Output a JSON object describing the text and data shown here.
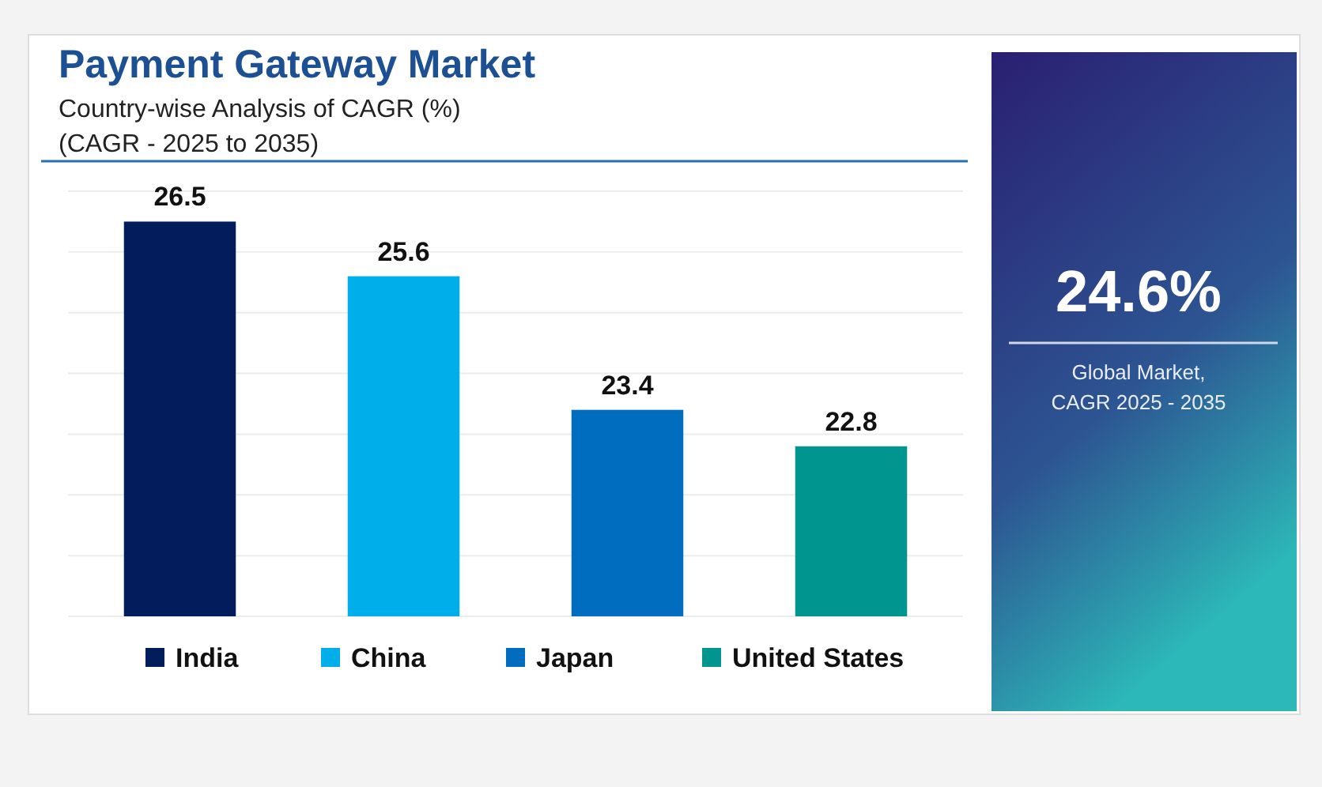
{
  "chart_data": {
    "type": "bar",
    "title": "Payment Gateway Market",
    "subtitle": "Country-wise Analysis of CAGR (%)\n(CAGR - 2025 to 2035)",
    "categories": [
      "India",
      "China",
      "Japan",
      "United States"
    ],
    "values": [
      26.5,
      25.6,
      23.4,
      22.8
    ],
    "colors": [
      "#031d5c",
      "#00aeea",
      "#006dbf",
      "#00968f"
    ],
    "ylim": [
      20,
      27
    ],
    "yticks": [
      {
        "value": 20,
        "label": null
      },
      {
        "value": 21,
        "label": null
      },
      {
        "value": 22,
        "label": null
      },
      {
        "value": 23,
        "label": null
      },
      {
        "value": 24,
        "label": null
      },
      {
        "value": 25,
        "label": null
      },
      {
        "value": 26,
        "label": null
      },
      {
        "value": 27,
        "label": null
      }
    ],
    "grid": "y",
    "tick_labels": false,
    "data_labels": true,
    "annotations": [
      "24.6%",
      "Global Market,\nCAGR 2025 - 2035"
    ]
  }
}
